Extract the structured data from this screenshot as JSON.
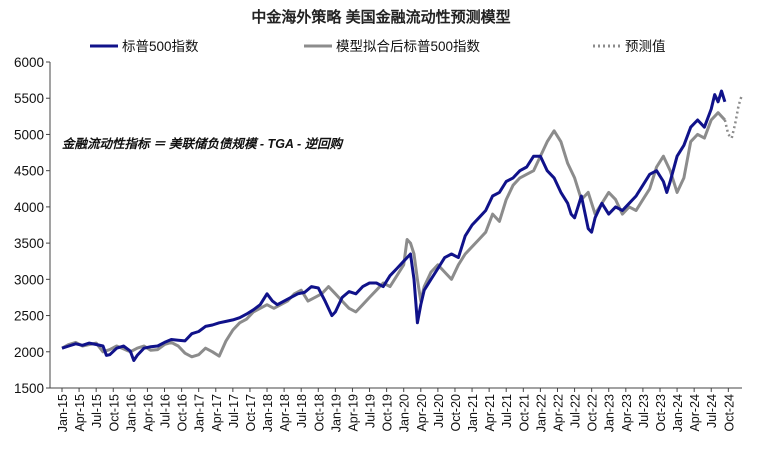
{
  "chart_data": {
    "type": "line",
    "title": "中金海外策略  美国金融流动性预测模型",
    "annotation": "金融流动性指标 ＝ 美联储负债规模 - TGA - 逆回购",
    "xlabel": "",
    "ylabel": "",
    "ylim": [
      1500,
      6000
    ],
    "yticks": [
      1500,
      2000,
      2500,
      3000,
      3500,
      4000,
      4500,
      5000,
      5500,
      6000
    ],
    "xrange": [
      2015.0,
      2024.95
    ],
    "xtick_labels": [
      "Jan-15",
      "Apr-15",
      "Jul-15",
      "Oct-15",
      "Jan-16",
      "Apr-16",
      "Jul-16",
      "Oct-16",
      "Jan-17",
      "Apr-17",
      "Jul-17",
      "Oct-17",
      "Jan-18",
      "Apr-18",
      "Jul-18",
      "Oct-18",
      "Jan-19",
      "Apr-19",
      "Jul-19",
      "Oct-19",
      "Jan-20",
      "Apr-20",
      "Jul-20",
      "Oct-20",
      "Jan-21",
      "Apr-21",
      "Jul-21",
      "Oct-21",
      "Jan-22",
      "Apr-22",
      "Jul-22",
      "Oct-22",
      "Jan-23",
      "Apr-23",
      "Jul-23",
      "Oct-23",
      "Jan-24",
      "Apr-24",
      "Jul-24",
      "Oct-24"
    ],
    "legend": [
      "标普500指数",
      "模型拟合后标普500指数",
      "预测值"
    ],
    "colors": {
      "sp500": "#10128a",
      "model": "#8c8c8c",
      "forecast": "#8c8c8c",
      "axis": "#444444"
    },
    "series": [
      {
        "name": "标普500指数",
        "x": [
          2015.0,
          2015.1,
          2015.2,
          2015.3,
          2015.4,
          2015.5,
          2015.6,
          2015.65,
          2015.7,
          2015.8,
          2015.9,
          2016.0,
          2016.05,
          2016.1,
          2016.2,
          2016.3,
          2016.4,
          2016.5,
          2016.6,
          2016.7,
          2016.8,
          2016.9,
          2017.0,
          2017.1,
          2017.2,
          2017.3,
          2017.4,
          2017.5,
          2017.6,
          2017.7,
          2017.8,
          2017.9,
          2018.0,
          2018.08,
          2018.15,
          2018.25,
          2018.35,
          2018.45,
          2018.55,
          2018.65,
          2018.75,
          2018.85,
          2018.95,
          2019.0,
          2019.1,
          2019.2,
          2019.3,
          2019.4,
          2019.5,
          2019.6,
          2019.7,
          2019.8,
          2019.9,
          2020.0,
          2020.05,
          2020.1,
          2020.15,
          2020.2,
          2020.25,
          2020.3,
          2020.4,
          2020.5,
          2020.6,
          2020.7,
          2020.8,
          2020.9,
          2021.0,
          2021.1,
          2021.2,
          2021.3,
          2021.4,
          2021.5,
          2021.6,
          2021.7,
          2021.8,
          2021.9,
          2022.0,
          2022.1,
          2022.2,
          2022.3,
          2022.4,
          2022.45,
          2022.5,
          2022.6,
          2022.7,
          2022.75,
          2022.8,
          2022.9,
          2023.0,
          2023.1,
          2023.2,
          2023.3,
          2023.4,
          2023.5,
          2023.6,
          2023.7,
          2023.8,
          2023.85,
          2023.9,
          2024.0,
          2024.1,
          2024.2,
          2024.3,
          2024.4,
          2024.5,
          2024.55,
          2024.6,
          2024.65,
          2024.7
        ],
        "values": [
          2050,
          2080,
          2110,
          2090,
          2120,
          2100,
          2080,
          1950,
          1960,
          2050,
          2080,
          2010,
          1880,
          1950,
          2050,
          2070,
          2080,
          2130,
          2170,
          2160,
          2150,
          2250,
          2280,
          2350,
          2370,
          2400,
          2420,
          2440,
          2470,
          2520,
          2580,
          2650,
          2800,
          2700,
          2650,
          2700,
          2750,
          2800,
          2820,
          2900,
          2880,
          2700,
          2500,
          2550,
          2750,
          2830,
          2800,
          2900,
          2950,
          2950,
          2900,
          3050,
          3150,
          3250,
          3300,
          3350,
          3000,
          2400,
          2650,
          2850,
          3000,
          3150,
          3300,
          3350,
          3300,
          3600,
          3750,
          3850,
          3950,
          4150,
          4200,
          4350,
          4400,
          4500,
          4550,
          4700,
          4700,
          4500,
          4400,
          4200,
          4050,
          3900,
          3850,
          4150,
          3700,
          3650,
          3850,
          4050,
          3900,
          4000,
          3950,
          4050,
          4150,
          4300,
          4450,
          4500,
          4350,
          4200,
          4350,
          4700,
          4850,
          5100,
          5200,
          5100,
          5350,
          5550,
          5450,
          5600,
          5450
        ]
      },
      {
        "name": "模型拟合后标普500指数",
        "x": [
          2015.0,
          2015.1,
          2015.2,
          2015.3,
          2015.4,
          2015.5,
          2015.6,
          2015.7,
          2015.8,
          2015.9,
          2016.0,
          2016.1,
          2016.2,
          2016.3,
          2016.4,
          2016.5,
          2016.6,
          2016.7,
          2016.8,
          2016.9,
          2017.0,
          2017.1,
          2017.2,
          2017.3,
          2017.4,
          2017.5,
          2017.6,
          2017.7,
          2017.8,
          2017.9,
          2018.0,
          2018.1,
          2018.2,
          2018.3,
          2018.4,
          2018.5,
          2018.6,
          2018.7,
          2018.8,
          2018.9,
          2019.0,
          2019.1,
          2019.2,
          2019.3,
          2019.4,
          2019.5,
          2019.6,
          2019.7,
          2019.8,
          2019.9,
          2020.0,
          2020.05,
          2020.1,
          2020.15,
          2020.2,
          2020.25,
          2020.3,
          2020.4,
          2020.5,
          2020.6,
          2020.7,
          2020.8,
          2020.9,
          2021.0,
          2021.1,
          2021.2,
          2021.3,
          2021.4,
          2021.5,
          2021.6,
          2021.7,
          2021.8,
          2021.9,
          2022.0,
          2022.1,
          2022.2,
          2022.3,
          2022.4,
          2022.5,
          2022.6,
          2022.7,
          2022.8,
          2022.9,
          2023.0,
          2023.1,
          2023.2,
          2023.3,
          2023.4,
          2023.5,
          2023.6,
          2023.7,
          2023.8,
          2023.9,
          2024.0,
          2024.1,
          2024.2,
          2024.3,
          2024.4,
          2024.5,
          2024.6,
          2024.7
        ],
        "values": [
          2050,
          2100,
          2130,
          2080,
          2100,
          2120,
          2000,
          2030,
          2080,
          2040,
          2000,
          2050,
          2080,
          2020,
          2030,
          2100,
          2130,
          2080,
          1980,
          1930,
          1960,
          2050,
          2000,
          1940,
          2150,
          2300,
          2400,
          2450,
          2550,
          2600,
          2650,
          2600,
          2650,
          2700,
          2800,
          2850,
          2700,
          2750,
          2800,
          2900,
          2800,
          2700,
          2600,
          2550,
          2650,
          2750,
          2850,
          2950,
          2900,
          3050,
          3200,
          3550,
          3500,
          3350,
          3000,
          2700,
          2900,
          3100,
          3200,
          3100,
          3000,
          3200,
          3350,
          3450,
          3550,
          3650,
          3900,
          3800,
          4100,
          4300,
          4400,
          4450,
          4500,
          4700,
          4900,
          5050,
          4900,
          4600,
          4400,
          4100,
          4200,
          3900,
          4050,
          4200,
          4100,
          3900,
          4000,
          3950,
          4100,
          4250,
          4550,
          4700,
          4500,
          4200,
          4400,
          4900,
          5000,
          4950,
          5200,
          5300,
          5200
        ]
      },
      {
        "name": "预测值",
        "x": [
          2024.7,
          2024.75,
          2024.8,
          2024.85,
          2024.9,
          2024.95
        ],
        "values": [
          5200,
          5000,
          4950,
          5150,
          5400,
          5550
        ]
      }
    ]
  }
}
